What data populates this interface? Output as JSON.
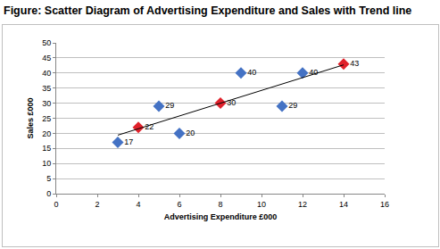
{
  "chart_data": {
    "type": "scatter",
    "title": "Figure: Scatter Diagram of Advertising Expenditure and Sales with Trend line",
    "x_label": "Advertising Expenditure £000",
    "y_label": "Sales £000",
    "xlim": [
      0,
      16
    ],
    "xticks": [
      0,
      2,
      4,
      6,
      8,
      10,
      12,
      14,
      16
    ],
    "ylim": [
      0,
      50
    ],
    "yticks": [
      0,
      5,
      10,
      15,
      20,
      25,
      30,
      35,
      40,
      45,
      50
    ],
    "grid": "y",
    "series": [
      {
        "type": "scatter",
        "color": "#4472c4",
        "marker": "diamond",
        "data_labels": true,
        "x": [
          3,
          5,
          6,
          9,
          11,
          12
        ],
        "values": [
          17,
          29,
          20,
          40,
          29,
          40
        ]
      },
      {
        "type": "scatter",
        "color": "#e0212b",
        "marker": "diamond",
        "data_labels": true,
        "x": [
          4,
          8,
          14
        ],
        "values": [
          22,
          30,
          43
        ]
      },
      {
        "type": "line",
        "color": "#000000",
        "line_style": "solid",
        "x": [
          3,
          14
        ],
        "values": [
          19.4,
          42.7
        ]
      }
    ]
  }
}
